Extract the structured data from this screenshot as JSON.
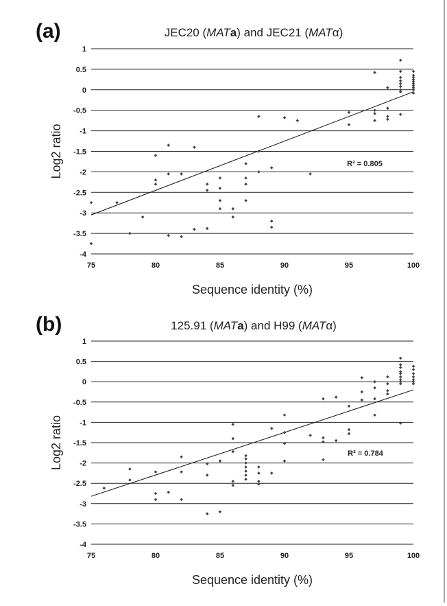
{
  "chart_data": [
    {
      "type": "scatter",
      "panel_label": "(a)",
      "title": {
        "parts": [
          {
            "t": "JEC20 ("
          },
          {
            "t": "MAT",
            "i": true
          },
          {
            "t": "a",
            "b": true
          },
          {
            "t": ") and JEC21 ("
          },
          {
            "t": "MAT",
            "i": true
          },
          {
            "t": "α"
          },
          {
            "t": ")"
          }
        ]
      },
      "xlabel": "Sequence identity (%)",
      "ylabel": "Log2 ratio",
      "xlim": [
        75,
        100
      ],
      "ylim": [
        -4,
        1
      ],
      "xticks": [
        "75",
        "80",
        "85",
        "90",
        "95",
        "100"
      ],
      "yticks": [
        "1",
        "0.5",
        "0",
        "-0.5",
        "-1",
        "-1.5",
        "-2",
        "-2.5",
        "-3",
        "-3.5",
        "-4"
      ],
      "grid": "horizontal",
      "annotation": "R² = 0.805",
      "trendline": {
        "x": [
          75,
          100
        ],
        "y": [
          -3.05,
          -0.05
        ]
      },
      "points": [
        [
          75,
          -2.75
        ],
        [
          75,
          -3.75
        ],
        [
          77,
          -2.75
        ],
        [
          78,
          -3.5
        ],
        [
          79,
          -3.1
        ],
        [
          80,
          -1.6
        ],
        [
          80,
          -2.2
        ],
        [
          80,
          -2.3
        ],
        [
          81,
          -1.35
        ],
        [
          81,
          -2.05
        ],
        [
          81,
          -3.55
        ],
        [
          82,
          -2.05
        ],
        [
          82,
          -3.58
        ],
        [
          83,
          -1.4
        ],
        [
          83,
          -3.4
        ],
        [
          84,
          -2.3
        ],
        [
          84,
          -2.45
        ],
        [
          84,
          -3.38
        ],
        [
          85,
          -2.15
        ],
        [
          85,
          -2.4
        ],
        [
          85,
          -2.7
        ],
        [
          85,
          -2.9
        ],
        [
          86,
          -2.9
        ],
        [
          86,
          -3.1
        ],
        [
          87,
          -1.8
        ],
        [
          87,
          -2.15
        ],
        [
          87,
          -2.3
        ],
        [
          87,
          -2.7
        ],
        [
          88,
          -0.65
        ],
        [
          88,
          -1.5
        ],
        [
          88,
          -2.0
        ],
        [
          89,
          -1.9
        ],
        [
          89,
          -3.2
        ],
        [
          89,
          -3.35
        ],
        [
          90,
          -0.68
        ],
        [
          91,
          -0.75
        ],
        [
          92,
          -2.05
        ],
        [
          95,
          -0.55
        ],
        [
          95,
          -0.85
        ],
        [
          97,
          0.42
        ],
        [
          97,
          -0.5
        ],
        [
          97,
          -0.58
        ],
        [
          97,
          -0.75
        ],
        [
          98,
          0.05
        ],
        [
          98,
          -0.45
        ],
        [
          98,
          -0.65
        ],
        [
          98,
          -0.72
        ],
        [
          99,
          0.72
        ],
        [
          99,
          0.45
        ],
        [
          99,
          0.3
        ],
        [
          99,
          0.22
        ],
        [
          99,
          0.15
        ],
        [
          99,
          0.08
        ],
        [
          99,
          0.0
        ],
        [
          99,
          -0.05
        ],
        [
          99,
          -0.6
        ],
        [
          100,
          0.45
        ],
        [
          100,
          0.35
        ],
        [
          100,
          0.3
        ],
        [
          100,
          0.25
        ],
        [
          100,
          0.2
        ],
        [
          100,
          0.15
        ],
        [
          100,
          0.1
        ],
        [
          100,
          0.05
        ],
        [
          100,
          0.0
        ],
        [
          100,
          -0.08
        ]
      ]
    },
    {
      "type": "scatter",
      "panel_label": "(b)",
      "title": {
        "parts": [
          {
            "t": "125.91 ("
          },
          {
            "t": "MAT",
            "i": true
          },
          {
            "t": "a",
            "b": true
          },
          {
            "t": ") and H99 ("
          },
          {
            "t": "MAT",
            "i": true
          },
          {
            "t": "α"
          },
          {
            "t": ")"
          }
        ]
      },
      "xlabel": "Sequence identity (%)",
      "ylabel": "Log2 ratio",
      "xlim": [
        75,
        100
      ],
      "ylim": [
        -4,
        1
      ],
      "xticks": [
        "75",
        "80",
        "85",
        "90",
        "95",
        "100"
      ],
      "yticks": [
        "1",
        "0.5",
        "0",
        "-0.5",
        "-1",
        "-1.5",
        "-2",
        "-2.5",
        "-3",
        "-3.5",
        "-4"
      ],
      "grid": "horizontal",
      "annotation": "R² = 0.784",
      "trendline": {
        "x": [
          75,
          100
        ],
        "y": [
          -2.82,
          -0.2
        ]
      },
      "points": [
        [
          76,
          -2.62
        ],
        [
          78,
          -2.15
        ],
        [
          78,
          -2.42
        ],
        [
          80,
          -2.22
        ],
        [
          80,
          -2.75
        ],
        [
          80,
          -2.9
        ],
        [
          81,
          -2.72
        ],
        [
          82,
          -1.85
        ],
        [
          82,
          -2.22
        ],
        [
          82,
          -2.9
        ],
        [
          84,
          -2.02
        ],
        [
          84,
          -2.3
        ],
        [
          84,
          -3.25
        ],
        [
          85,
          -1.95
        ],
        [
          85,
          -3.2
        ],
        [
          86,
          -1.05
        ],
        [
          86,
          -1.4
        ],
        [
          86,
          -1.72
        ],
        [
          86,
          -2.45
        ],
        [
          86,
          -2.55
        ],
        [
          87,
          -1.82
        ],
        [
          87,
          -1.9
        ],
        [
          87,
          -2.0
        ],
        [
          87,
          -2.1
        ],
        [
          87,
          -2.2
        ],
        [
          87,
          -2.3
        ],
        [
          87,
          -2.4
        ],
        [
          88,
          -2.1
        ],
        [
          88,
          -2.25
        ],
        [
          88,
          -2.45
        ],
        [
          88,
          -2.52
        ],
        [
          89,
          -1.15
        ],
        [
          89,
          -2.25
        ],
        [
          90,
          -0.82
        ],
        [
          90,
          -1.25
        ],
        [
          90,
          -1.52
        ],
        [
          90,
          -1.95
        ],
        [
          92,
          -1.32
        ],
        [
          93,
          -0.42
        ],
        [
          93,
          -1.38
        ],
        [
          93,
          -1.48
        ],
        [
          93,
          -1.92
        ],
        [
          94,
          -0.38
        ],
        [
          94,
          -1.45
        ],
        [
          95,
          -0.6
        ],
        [
          95,
          -1.18
        ],
        [
          95,
          -1.28
        ],
        [
          96,
          0.1
        ],
        [
          96,
          -0.25
        ],
        [
          96,
          -0.45
        ],
        [
          97,
          0.0
        ],
        [
          97,
          -0.15
        ],
        [
          97,
          -0.42
        ],
        [
          97,
          -0.82
        ],
        [
          98,
          0.12
        ],
        [
          98,
          -0.05
        ],
        [
          98,
          -0.22
        ],
        [
          98,
          -0.3
        ],
        [
          99,
          0.58
        ],
        [
          99,
          0.42
        ],
        [
          99,
          0.35
        ],
        [
          99,
          0.25
        ],
        [
          99,
          0.2
        ],
        [
          99,
          0.12
        ],
        [
          99,
          0.05
        ],
        [
          99,
          0.0
        ],
        [
          99,
          -0.05
        ],
        [
          99,
          -1.02
        ],
        [
          100,
          0.38
        ],
        [
          100,
          0.3
        ],
        [
          100,
          0.2
        ],
        [
          100,
          0.12
        ],
        [
          100,
          0.05
        ],
        [
          100,
          0.0
        ],
        [
          100,
          -0.05
        ]
      ]
    }
  ]
}
